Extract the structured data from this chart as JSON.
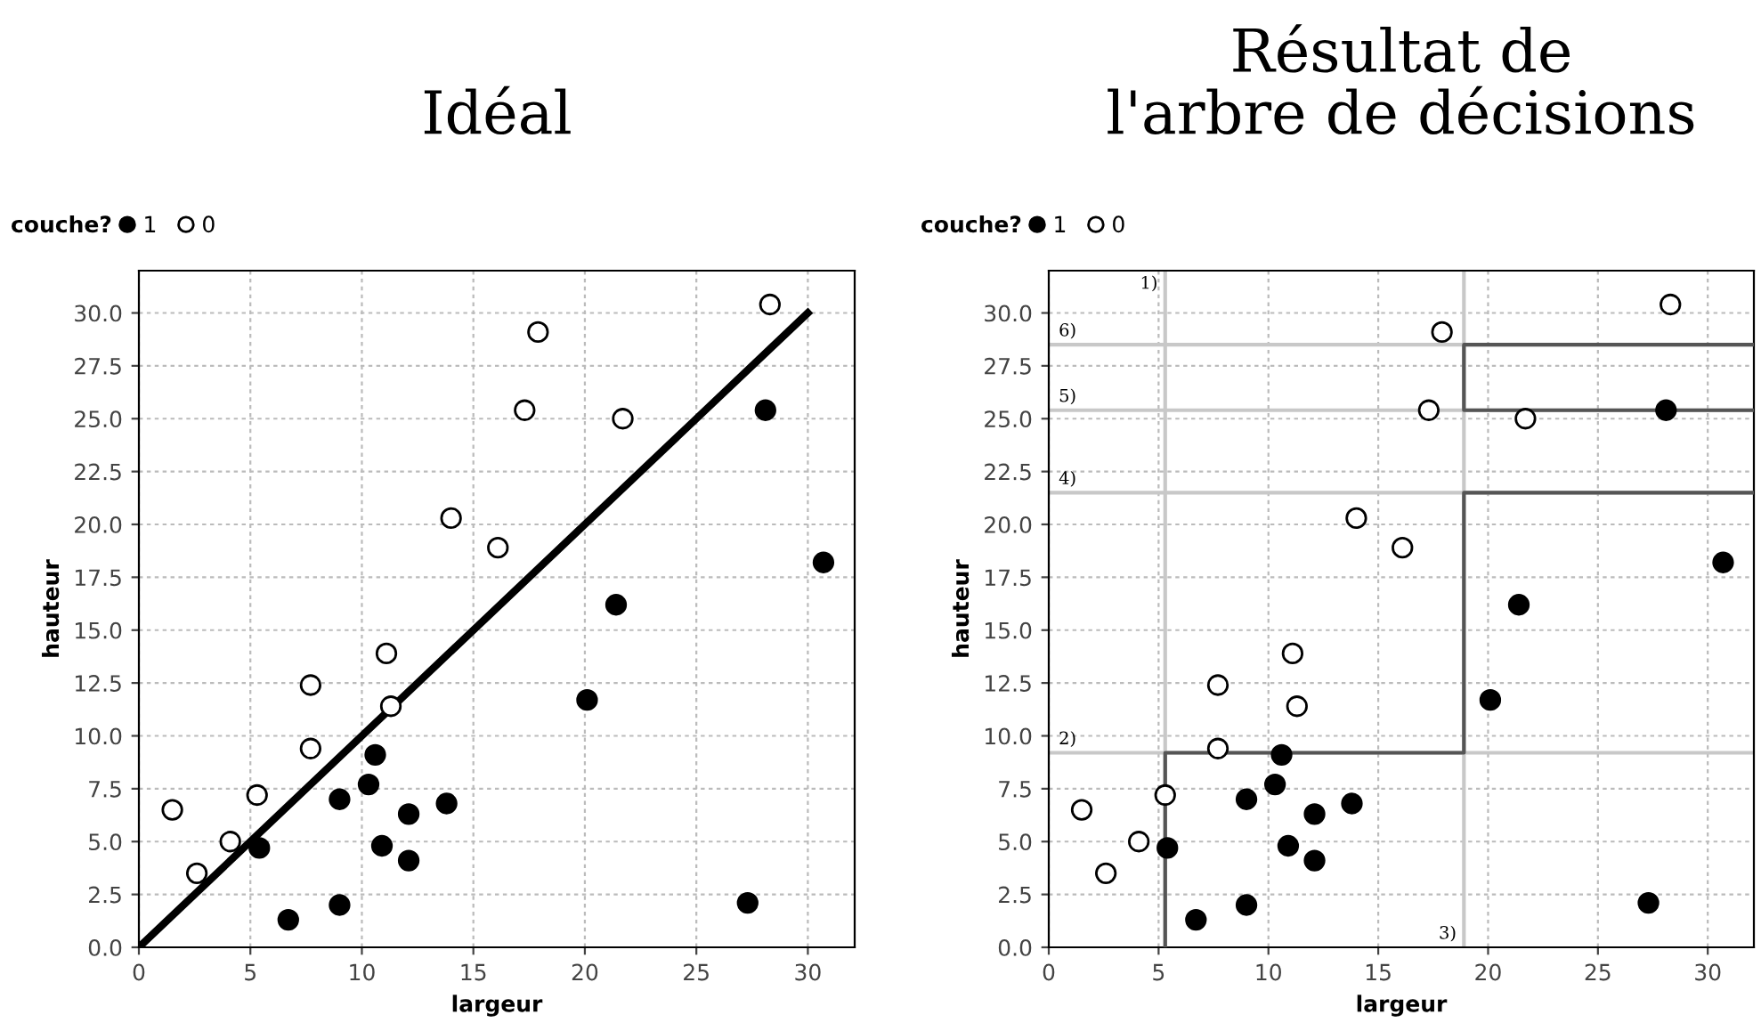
{
  "chart_data": [
    {
      "type": "scatter",
      "title": "Idéal",
      "xlabel": "largeur",
      "ylabel": "hauteur",
      "legend_title": "couche?",
      "legend": "top left",
      "grid": true,
      "marker": "circle",
      "xlim": [
        0,
        32.1
      ],
      "ylim": [
        0,
        32
      ],
      "xticks": [
        0,
        5,
        10,
        15,
        20,
        25,
        30
      ],
      "yticks": [
        {
          "value": 0,
          "label": "0.0"
        },
        {
          "value": 2.5,
          "label": "2.5"
        },
        {
          "value": 5,
          "label": "5.0"
        },
        {
          "value": 7.5,
          "label": "7.5"
        },
        {
          "value": 10,
          "label": "10.0"
        },
        {
          "value": 12.5,
          "label": "12.5"
        },
        {
          "value": 15,
          "label": "15.0"
        },
        {
          "value": 17.5,
          "label": "17.5"
        },
        {
          "value": 20,
          "label": "20.0"
        },
        {
          "value": 22.5,
          "label": "22.5"
        },
        {
          "value": 25,
          "label": "25.0"
        },
        {
          "value": 27.5,
          "label": "27.5"
        },
        {
          "value": 30,
          "label": "30.0"
        }
      ],
      "series": [
        {
          "name": "1",
          "color": "#000000",
          "x": [
            5.4,
            6.7,
            9.0,
            9.0,
            10.3,
            10.6,
            10.9,
            12.1,
            12.1,
            13.8,
            20.1,
            21.4,
            27.3,
            28.1,
            30.7
          ],
          "values": [
            4.7,
            1.3,
            2.0,
            7.0,
            7.7,
            9.1,
            4.8,
            6.3,
            4.1,
            6.8,
            11.7,
            16.2,
            2.1,
            25.4,
            18.2
          ]
        },
        {
          "name": "0",
          "color": "#ffffff",
          "x": [
            1.5,
            2.6,
            4.1,
            5.3,
            7.7,
            7.7,
            11.1,
            11.3,
            14.0,
            16.1,
            17.3,
            17.9,
            21.7,
            28.3
          ],
          "values": [
            6.5,
            3.5,
            5.0,
            7.2,
            9.4,
            12.4,
            13.9,
            11.4,
            20.3,
            18.9,
            25.4,
            29.1,
            25.0,
            30.4
          ]
        },
        {
          "type": "line",
          "marker": "none",
          "color": "#000000",
          "x": [
            0,
            30
          ],
          "values": [
            0,
            30
          ]
        }
      ]
    },
    {
      "type": "scatter",
      "title": "Résultat de\nl'arbre de décisions",
      "xlabel": "largeur",
      "ylabel": "hauteur",
      "legend_title": "couche?",
      "legend": "top left",
      "grid": true,
      "marker": "circle",
      "xlim": [
        0,
        32.1
      ],
      "ylim": [
        0,
        32
      ],
      "xticks": [
        0,
        5,
        10,
        15,
        20,
        25,
        30
      ],
      "yticks": [
        {
          "value": 0,
          "label": "0.0"
        },
        {
          "value": 2.5,
          "label": "2.5"
        },
        {
          "value": 5,
          "label": "5.0"
        },
        {
          "value": 7.5,
          "label": "7.5"
        },
        {
          "value": 10,
          "label": "10.0"
        },
        {
          "value": 12.5,
          "label": "12.5"
        },
        {
          "value": 15,
          "label": "15.0"
        },
        {
          "value": 17.5,
          "label": "17.5"
        },
        {
          "value": 20,
          "label": "20.0"
        },
        {
          "value": 22.5,
          "label": "22.5"
        },
        {
          "value": 25,
          "label": "25.0"
        },
        {
          "value": 27.5,
          "label": "27.5"
        },
        {
          "value": 30,
          "label": "30.0"
        }
      ],
      "ref_lines": [
        {
          "axis": "x",
          "value": 5.3,
          "color": "#c8c8c8"
        },
        {
          "axis": "y",
          "value": 9.2,
          "color": "#c8c8c8"
        },
        {
          "axis": "x",
          "value": 18.9,
          "color": "#c8c8c8"
        },
        {
          "axis": "y",
          "value": 21.5,
          "color": "#c8c8c8"
        },
        {
          "axis": "y",
          "value": 25.4,
          "color": "#c8c8c8"
        },
        {
          "axis": "y",
          "value": 28.5,
          "color": "#c8c8c8"
        }
      ],
      "annotations": [
        {
          "text": "1)",
          "x": 5.3,
          "y": 32
        },
        {
          "text": "2)",
          "x": 0,
          "y": 9.2
        },
        {
          "text": "3)",
          "x": 18.9,
          "y": 0
        },
        {
          "text": "4)",
          "x": 0,
          "y": 21.5
        },
        {
          "text": "5)",
          "x": 0,
          "y": 25.4
        },
        {
          "text": "6)",
          "x": 0,
          "y": 28.5
        }
      ],
      "series": [
        {
          "name": "1",
          "color": "#000000",
          "x": [
            5.4,
            6.7,
            9.0,
            9.0,
            10.3,
            10.6,
            10.9,
            12.1,
            12.1,
            13.8,
            20.1,
            21.4,
            27.3,
            28.1,
            30.7
          ],
          "values": [
            4.7,
            1.3,
            2.0,
            7.0,
            7.7,
            9.1,
            4.8,
            6.3,
            4.1,
            6.8,
            11.7,
            16.2,
            2.1,
            25.4,
            18.2
          ]
        },
        {
          "name": "0",
          "color": "#ffffff",
          "x": [
            1.5,
            2.6,
            4.1,
            5.3,
            7.7,
            7.7,
            11.1,
            11.3,
            14.0,
            16.1,
            17.3,
            17.9,
            21.7,
            28.3
          ],
          "values": [
            6.5,
            3.5,
            5.0,
            7.2,
            9.4,
            12.4,
            13.9,
            11.4,
            20.3,
            18.9,
            25.4,
            29.1,
            25.0,
            30.4
          ]
        },
        {
          "type": "line",
          "marker": "none",
          "color": "#555555",
          "x": [
            5.3,
            5.3,
            18.9,
            18.9,
            32.1
          ],
          "values": [
            0,
            9.2,
            9.2,
            21.5,
            21.5
          ]
        },
        {
          "type": "line",
          "marker": "none",
          "color": "#555555",
          "x": [
            32.1,
            18.9,
            18.9,
            32.1
          ],
          "values": [
            28.5,
            28.5,
            25.4,
            25.4
          ]
        }
      ]
    }
  ]
}
